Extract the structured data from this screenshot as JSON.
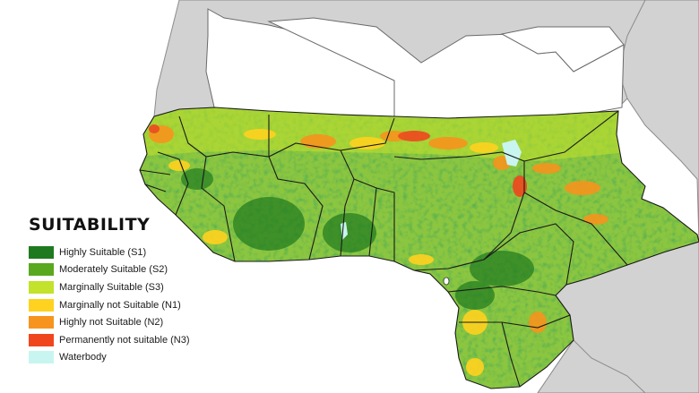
{
  "legend": {
    "title": "SUITABILITY",
    "items": [
      {
        "label": "Highly Suitable (S1)",
        "color": "#1f7a1f",
        "icon": "swatch-s1-icon"
      },
      {
        "label": "Moderately Suitable (S2)",
        "color": "#5aa81e",
        "icon": "swatch-s2-icon"
      },
      {
        "label": "Marginally Suitable (S3)",
        "color": "#c3e22b",
        "icon": "swatch-s3-icon"
      },
      {
        "label": "Marginally not Suitable (N1)",
        "color": "#ffd21f",
        "icon": "swatch-n1-icon"
      },
      {
        "label": "Highly not Suitable (N2)",
        "color": "#f7941d",
        "icon": "swatch-n2-icon"
      },
      {
        "label": "Permanently not suitable (N3)",
        "color": "#f0461e",
        "icon": "swatch-n3-icon"
      },
      {
        "label": "Waterbody",
        "color": "#c8f5ef",
        "icon": "swatch-waterbody-icon"
      }
    ]
  },
  "map_colors": {
    "background": "#ffffff",
    "outside_land": "#d2d2d2",
    "sahara_land": "#ffffff",
    "border": "#1a1a1a",
    "outside_border": "#8c8c8c"
  }
}
